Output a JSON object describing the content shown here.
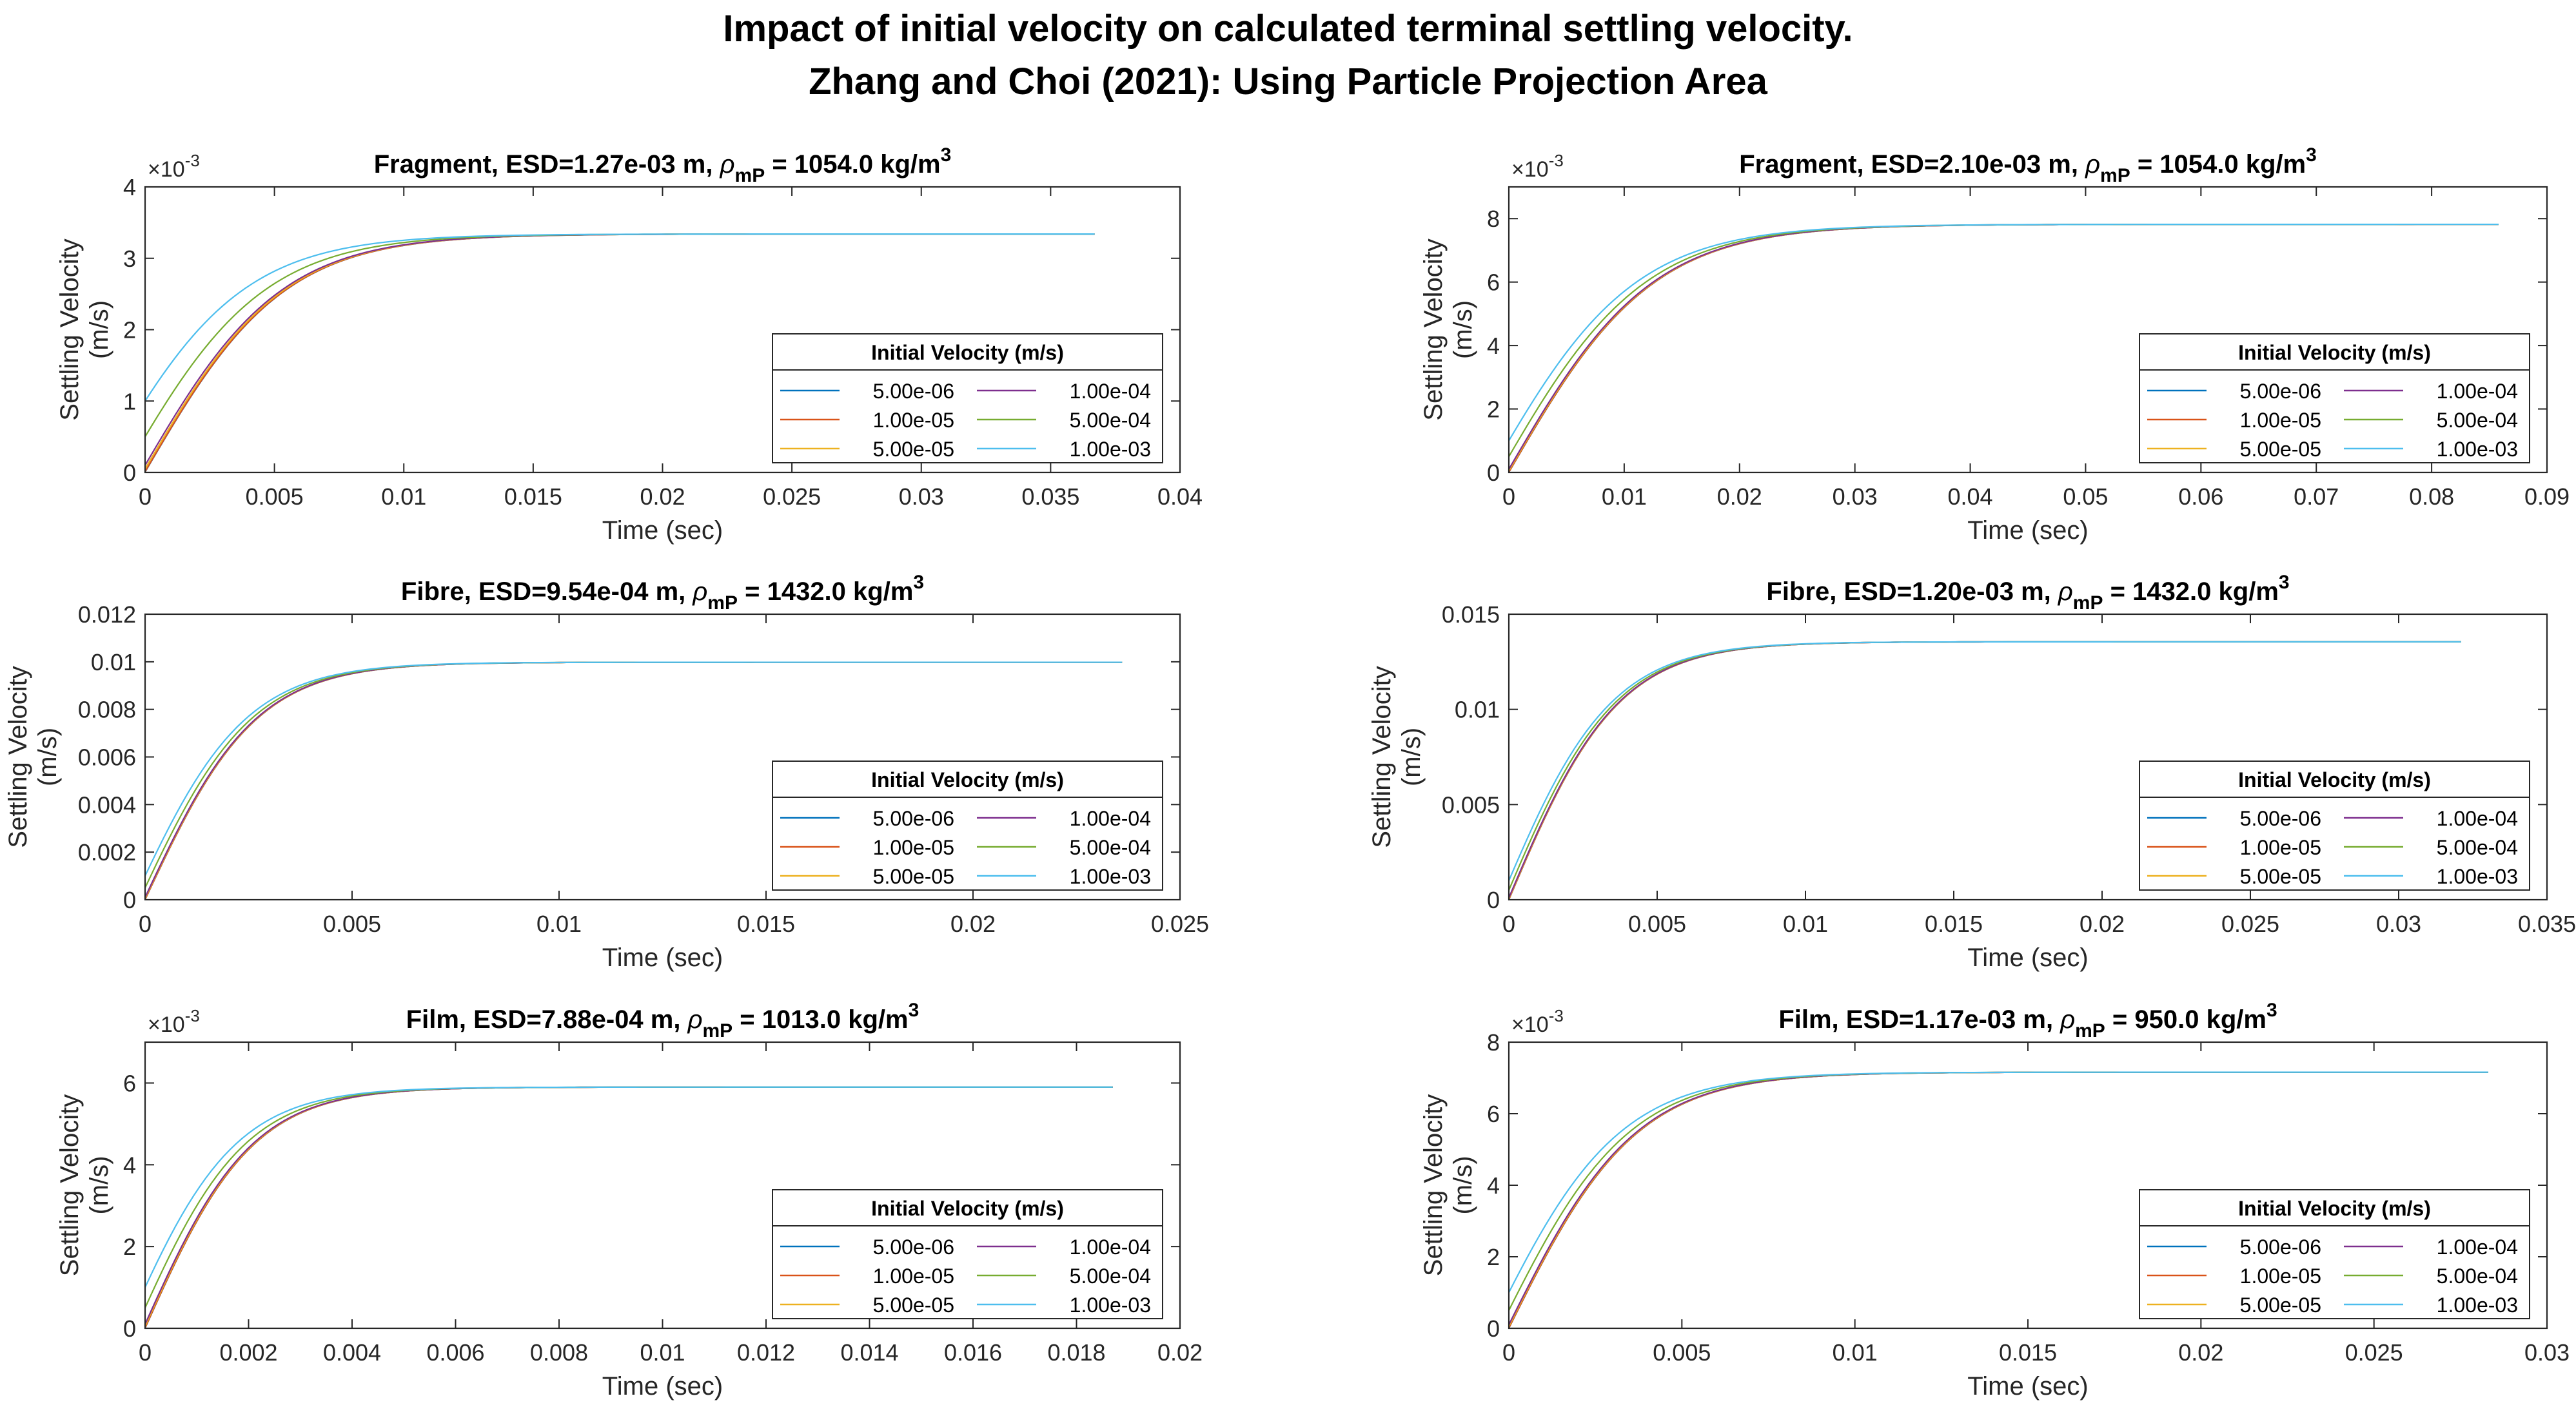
{
  "figure": {
    "title_line1": "Impact of initial velocity on calculated terminal settling velocity.",
    "title_line2": "Zhang and Choi (2021): Using Particle Projection Area"
  },
  "series_colors": [
    "#0072BD",
    "#D95319",
    "#EDB120",
    "#7E2F8E",
    "#77AC30",
    "#4DBEEE"
  ],
  "chart_data": [
    {
      "type": "line",
      "title": "Fragment, ESD=1.27e-03 m, ρ_mP = 1054.0 kg/m^3",
      "title_parts": {
        "prefix": "Fragment, ESD=1.27e-03 m, ",
        "rho": "ρ",
        "sub": "mP",
        "mid": " = 1054.0 kg/m",
        "sup": "3"
      },
      "xlabel": "Time (sec)",
      "ylabel": "Settling Velocity (m/s)",
      "ylabel_lines": [
        "Settling Velocity",
        "(m/s)"
      ],
      "xlim": [
        0,
        0.04
      ],
      "ylim": [
        0,
        0.004
      ],
      "xticks": [
        0,
        0.005,
        0.01,
        0.015,
        0.02,
        0.025,
        0.03,
        0.035,
        0.04
      ],
      "xtick_labels": [
        "0",
        "0.005",
        "0.01",
        "0.015",
        "0.02",
        "0.025",
        "0.03",
        "0.035",
        "0.04"
      ],
      "yticks": [
        0,
        0.001,
        0.002,
        0.003,
        0.004
      ],
      "ytick_labels": [
        "0",
        "1",
        "2",
        "3",
        "4"
      ],
      "y_exponent": "×10^-3",
      "exponent_parts": {
        "base": "×10",
        "exp": "-3"
      },
      "terminal_velocity": 0.00334,
      "t_end": 0.0367,
      "tau": 0.0054,
      "legend": {
        "title": "Initial Velocity (m/s)",
        "location": "bottom-right"
      },
      "series": [
        {
          "name": "5.00e-06",
          "initial_velocity": 5e-06
        },
        {
          "name": "1.00e-05",
          "initial_velocity": 1e-05
        },
        {
          "name": "5.00e-05",
          "initial_velocity": 5e-05
        },
        {
          "name": "1.00e-04",
          "initial_velocity": 0.0001
        },
        {
          "name": "5.00e-04",
          "initial_velocity": 0.0005
        },
        {
          "name": "1.00e-03",
          "initial_velocity": 0.001
        }
      ]
    },
    {
      "type": "line",
      "title": "Fragment, ESD=2.10e-03 m, ρ_mP = 1054.0 kg/m^3",
      "title_parts": {
        "prefix": "Fragment, ESD=2.10e-03 m, ",
        "rho": "ρ",
        "sub": "mP",
        "mid": " = 1054.0 kg/m",
        "sup": "3"
      },
      "xlabel": "Time (sec)",
      "ylabel": "Settling Velocity (m/s)",
      "ylabel_lines": [
        "Settling Velocity",
        "(m/s)"
      ],
      "xlim": [
        0,
        0.09
      ],
      "ylim": [
        0,
        0.009
      ],
      "xticks": [
        0,
        0.01,
        0.02,
        0.03,
        0.04,
        0.05,
        0.06,
        0.07,
        0.08,
        0.09
      ],
      "xtick_labels": [
        "0",
        "0.01",
        "0.02",
        "0.03",
        "0.04",
        "0.05",
        "0.06",
        "0.07",
        "0.08",
        "0.09"
      ],
      "yticks": [
        0,
        0.002,
        0.004,
        0.006,
        0.008
      ],
      "ytick_labels": [
        "0",
        "2",
        "4",
        "6",
        "8"
      ],
      "y_exponent": "×10^-3",
      "exponent_parts": {
        "base": "×10",
        "exp": "-3"
      },
      "terminal_velocity": 0.00782,
      "t_end": 0.0858,
      "tau": 0.0125,
      "legend": {
        "title": "Initial Velocity (m/s)",
        "location": "bottom-right"
      },
      "series": [
        {
          "name": "5.00e-06",
          "initial_velocity": 5e-06
        },
        {
          "name": "1.00e-05",
          "initial_velocity": 1e-05
        },
        {
          "name": "5.00e-05",
          "initial_velocity": 5e-05
        },
        {
          "name": "1.00e-04",
          "initial_velocity": 0.0001
        },
        {
          "name": "5.00e-04",
          "initial_velocity": 0.0005
        },
        {
          "name": "1.00e-03",
          "initial_velocity": 0.001
        }
      ]
    },
    {
      "type": "line",
      "title": "Fibre, ESD=9.54e-04 m, ρ_mP = 1432.0 kg/m^3",
      "title_parts": {
        "prefix": "Fibre, ESD=9.54e-04 m, ",
        "rho": "ρ",
        "sub": "mP",
        "mid": " = 1432.0 kg/m",
        "sup": "3"
      },
      "xlabel": "Time (sec)",
      "ylabel": "Settling Velocity (m/s)",
      "ylabel_lines": [
        "Settling Velocity",
        "(m/s)"
      ],
      "xlim": [
        0,
        0.025
      ],
      "ylim": [
        0,
        0.012
      ],
      "xticks": [
        0,
        0.005,
        0.01,
        0.015,
        0.02,
        0.025
      ],
      "xtick_labels": [
        "0",
        "0.005",
        "0.01",
        "0.015",
        "0.02",
        "0.025"
      ],
      "yticks": [
        0,
        0.002,
        0.004,
        0.006,
        0.008,
        0.01,
        0.012
      ],
      "ytick_labels": [
        "0",
        "0.002",
        "0.004",
        "0.006",
        "0.008",
        "0.01",
        "0.012"
      ],
      "y_exponent": "",
      "exponent_parts": {
        "base": "",
        "exp": ""
      },
      "terminal_velocity": 0.00998,
      "t_end": 0.0236,
      "tau": 0.0027,
      "legend": {
        "title": "Initial Velocity (m/s)",
        "location": "bottom-right"
      },
      "series": [
        {
          "name": "5.00e-06",
          "initial_velocity": 5e-06
        },
        {
          "name": "1.00e-05",
          "initial_velocity": 1e-05
        },
        {
          "name": "5.00e-05",
          "initial_velocity": 5e-05
        },
        {
          "name": "1.00e-04",
          "initial_velocity": 0.0001
        },
        {
          "name": "5.00e-04",
          "initial_velocity": 0.0005
        },
        {
          "name": "1.00e-03",
          "initial_velocity": 0.001
        }
      ]
    },
    {
      "type": "line",
      "title": "Fibre, ESD=1.20e-03 m, ρ_mP = 1432.0 kg/m^3",
      "title_parts": {
        "prefix": "Fibre, ESD=1.20e-03 m, ",
        "rho": "ρ",
        "sub": "mP",
        "mid": " = 1432.0 kg/m",
        "sup": "3"
      },
      "xlabel": "Time (sec)",
      "ylabel": "Settling Velocity (m/s)",
      "ylabel_lines": [
        "Settling Velocity",
        "(m/s)"
      ],
      "xlim": [
        0,
        0.035
      ],
      "ylim": [
        0,
        0.015
      ],
      "xticks": [
        0,
        0.005,
        0.01,
        0.015,
        0.02,
        0.025,
        0.03,
        0.035
      ],
      "xtick_labels": [
        "0",
        "0.005",
        "0.01",
        "0.015",
        "0.02",
        "0.025",
        "0.03",
        "0.035"
      ],
      "yticks": [
        0,
        0.005,
        0.01,
        0.015
      ],
      "ytick_labels": [
        "0",
        "0.005",
        "0.01",
        "0.015"
      ],
      "y_exponent": "",
      "exponent_parts": {
        "base": "",
        "exp": ""
      },
      "terminal_velocity": 0.01355,
      "t_end": 0.0321,
      "tau": 0.0037,
      "legend": {
        "title": "Initial Velocity (m/s)",
        "location": "bottom-right"
      },
      "series": [
        {
          "name": "5.00e-06",
          "initial_velocity": 5e-06
        },
        {
          "name": "1.00e-05",
          "initial_velocity": 1e-05
        },
        {
          "name": "5.00e-05",
          "initial_velocity": 5e-05
        },
        {
          "name": "1.00e-04",
          "initial_velocity": 0.0001
        },
        {
          "name": "5.00e-04",
          "initial_velocity": 0.0005
        },
        {
          "name": "1.00e-03",
          "initial_velocity": 0.001
        }
      ]
    },
    {
      "type": "line",
      "title": "Film, ESD=7.88e-04 m, ρ_mP = 1013.0 kg/m^3",
      "title_parts": {
        "prefix": "Film, ESD=7.88e-04 m, ",
        "rho": "ρ",
        "sub": "mP",
        "mid": " = 1013.0 kg/m",
        "sup": "3"
      },
      "xlabel": "Time (sec)",
      "ylabel": "Settling Velocity (m/s)",
      "ylabel_lines": [
        "Settling Velocity",
        "(m/s)"
      ],
      "xlim": [
        0,
        0.02
      ],
      "ylim": [
        0,
        0.007
      ],
      "xticks": [
        0,
        0.002,
        0.004,
        0.006,
        0.008,
        0.01,
        0.012,
        0.014,
        0.016,
        0.018,
        0.02
      ],
      "xtick_labels": [
        "0",
        "0.002",
        "0.004",
        "0.006",
        "0.008",
        "0.01",
        "0.012",
        "0.014",
        "0.016",
        "0.018",
        "0.02"
      ],
      "yticks": [
        0,
        0.002,
        0.004,
        0.006
      ],
      "ytick_labels": [
        "0",
        "2",
        "4",
        "6"
      ],
      "y_exponent": "×10^-3",
      "exponent_parts": {
        "base": "×10",
        "exp": "-3"
      },
      "terminal_velocity": 0.0059,
      "t_end": 0.0187,
      "tau": 0.0021,
      "legend": {
        "title": "Initial Velocity (m/s)",
        "location": "bottom-right"
      },
      "series": [
        {
          "name": "5.00e-06",
          "initial_velocity": 5e-06
        },
        {
          "name": "1.00e-05",
          "initial_velocity": 1e-05
        },
        {
          "name": "5.00e-05",
          "initial_velocity": 5e-05
        },
        {
          "name": "1.00e-04",
          "initial_velocity": 0.0001
        },
        {
          "name": "5.00e-04",
          "initial_velocity": 0.0005
        },
        {
          "name": "1.00e-03",
          "initial_velocity": 0.001
        }
      ]
    },
    {
      "type": "line",
      "title": "Film, ESD=1.17e-03 m, ρ_mP = 950.0 kg/m^3",
      "title_parts": {
        "prefix": "Film, ESD=1.17e-03 m, ",
        "rho": "ρ",
        "sub": "mP",
        "mid": " = 950.0 kg/m",
        "sup": "3"
      },
      "xlabel": "Time (sec)",
      "ylabel": "Settling Velocity (m/s)",
      "ylabel_lines": [
        "Settling Velocity",
        "(m/s)"
      ],
      "xlim": [
        0,
        0.03
      ],
      "ylim": [
        0,
        0.008
      ],
      "xticks": [
        0,
        0.005,
        0.01,
        0.015,
        0.02,
        0.025,
        0.03
      ],
      "xtick_labels": [
        "0",
        "0.005",
        "0.01",
        "0.015",
        "0.02",
        "0.025",
        "0.03"
      ],
      "yticks": [
        0,
        0.002,
        0.004,
        0.006,
        0.008
      ],
      "ytick_labels": [
        "0",
        "2",
        "4",
        "6",
        "8"
      ],
      "y_exponent": "×10^-3",
      "exponent_parts": {
        "base": "×10",
        "exp": "-3"
      },
      "terminal_velocity": 0.00716,
      "t_end": 0.0283,
      "tau": 0.0037,
      "legend": {
        "title": "Initial Velocity (m/s)",
        "location": "bottom-right"
      },
      "series": [
        {
          "name": "5.00e-06",
          "initial_velocity": 5e-06
        },
        {
          "name": "1.00e-05",
          "initial_velocity": 1e-05
        },
        {
          "name": "5.00e-05",
          "initial_velocity": 5e-05
        },
        {
          "name": "1.00e-04",
          "initial_velocity": 0.0001
        },
        {
          "name": "5.00e-04",
          "initial_velocity": 0.0005
        },
        {
          "name": "1.00e-03",
          "initial_velocity": 0.001
        }
      ]
    }
  ]
}
